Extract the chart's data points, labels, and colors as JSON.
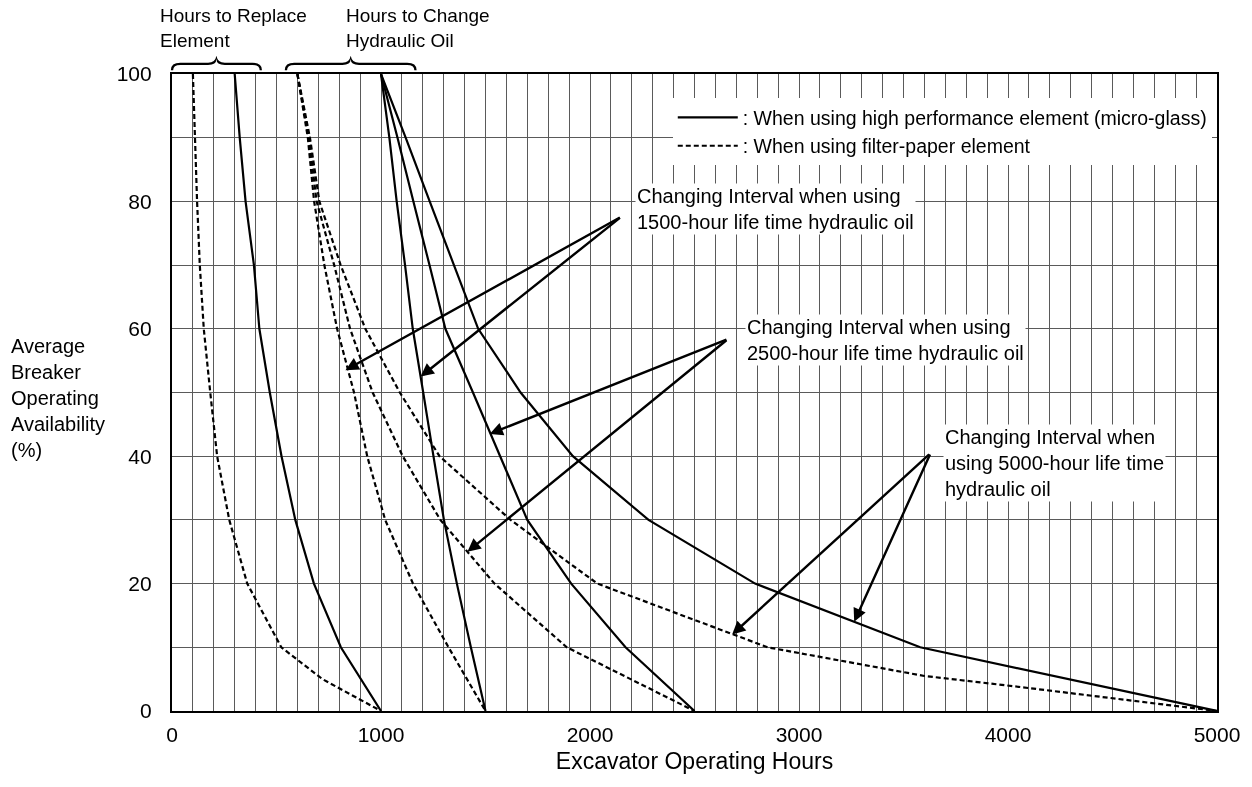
{
  "chart_data": {
    "type": "line",
    "xlabel": "Excavator Operating Hours",
    "ylabel": "Average\nBreaker\nOperating\nAvailability\n(%)",
    "annotations": [
      "Hours to Replace\nElement",
      "Hours to Change\nHydraulic Oil",
      {
        "text": "Changing Interval when using\n1500-hour life time hydraulic oil",
        "x": 830,
        "y": 53.5
      },
      {
        "text": "Changing Interval when using\n2500-hour life time hydraulic oil",
        "x": 1520,
        "y": 43.5
      },
      {
        "text": "Changing Interval when\nusing 5000-hour life time\nhydraulic oil",
        "x": 2680,
        "y": 12
      }
    ],
    "xlim": [
      0,
      5000
    ],
    "ylim": [
      0,
      100
    ],
    "xticks": [
      0,
      {
        "value": 100,
        "label": null
      },
      {
        "value": 200,
        "label": null
      },
      {
        "value": 300,
        "label": null
      },
      {
        "value": 400,
        "label": null
      },
      {
        "value": 500,
        "label": null
      },
      {
        "value": 600,
        "label": null
      },
      {
        "value": 700,
        "label": null
      },
      {
        "value": 800,
        "label": null
      },
      {
        "value": 900,
        "label": null
      },
      1000,
      {
        "value": 1100,
        "label": null
      },
      {
        "value": 1200,
        "label": null
      },
      {
        "value": 1300,
        "label": null
      },
      {
        "value": 1400,
        "label": null
      },
      {
        "value": 1500,
        "label": null
      },
      {
        "value": 1600,
        "label": null
      },
      {
        "value": 1700,
        "label": null
      },
      {
        "value": 1800,
        "label": null
      },
      {
        "value": 1900,
        "label": null
      },
      2000,
      {
        "value": 2100,
        "label": null
      },
      {
        "value": 2200,
        "label": null
      },
      {
        "value": 2300,
        "label": null
      },
      {
        "value": 2400,
        "label": null
      },
      {
        "value": 2500,
        "label": null
      },
      {
        "value": 2600,
        "label": null
      },
      {
        "value": 2700,
        "label": null
      },
      {
        "value": 2800,
        "label": null
      },
      {
        "value": 2900,
        "label": null
      },
      3000,
      {
        "value": 3100,
        "label": null
      },
      {
        "value": 3200,
        "label": null
      },
      {
        "value": 3300,
        "label": null
      },
      {
        "value": 3400,
        "label": null
      },
      {
        "value": 3500,
        "label": null
      },
      {
        "value": 3600,
        "label": null
      },
      {
        "value": 3700,
        "label": null
      },
      {
        "value": 3800,
        "label": null
      },
      {
        "value": 3900,
        "label": null
      },
      4000,
      {
        "value": 4100,
        "label": null
      },
      {
        "value": 4200,
        "label": null
      },
      {
        "value": 4300,
        "label": null
      },
      {
        "value": 4400,
        "label": null
      },
      {
        "value": 4500,
        "label": null
      },
      {
        "value": 4600,
        "label": null
      },
      {
        "value": 4700,
        "label": null
      },
      {
        "value": 4800,
        "label": null
      },
      {
        "value": 4900,
        "label": null
      },
      5000
    ],
    "yticks": [
      0,
      {
        "value": 10,
        "label": null
      },
      20,
      {
        "value": 30,
        "label": null
      },
      40,
      {
        "value": 50,
        "label": null
      },
      60,
      {
        "value": 70,
        "label": null
      },
      80,
      {
        "value": 90,
        "label": null
      },
      100
    ],
    "grid": true,
    "legend": "top right",
    "series": [
      {
        "name": ": When using high performance element (micro-glass)",
        "color": "#000000",
        "line_style": "solid",
        "x": [
          300,
          324,
          352,
          392,
          418,
          468,
          524,
          590,
          679,
          808,
          1000
        ],
        "values": [
          100,
          90,
          80,
          70,
          60,
          50,
          40,
          30,
          20,
          10,
          0
        ]
      },
      {
        "name": ": When using filter-paper element",
        "color": "#000000",
        "line_style": "dashed",
        "x": [
          100,
          110,
          120,
          133,
          152,
          183,
          216,
          274,
          360,
          523,
          720,
          1000
        ],
        "values": [
          100,
          90,
          80,
          70,
          60,
          50,
          40,
          30,
          20,
          10,
          5,
          0
        ]
      },
      {
        "color": "#000000",
        "line_style": "solid",
        "x": [
          1000,
          1040,
          1075,
          1115,
          1152,
          1202,
          1251,
          1301,
          1363,
          1430,
          1500
        ],
        "values": [
          100,
          90,
          80,
          70,
          60,
          50,
          40,
          30,
          20,
          10,
          0
        ]
      },
      {
        "color": "#000000",
        "line_style": "dashed",
        "x": [
          600,
          650,
          680,
          729,
          790,
          871,
          934,
          1020,
          1153,
          1323,
          1500
        ],
        "values": [
          100,
          90,
          80,
          70,
          60,
          50,
          40,
          30,
          20,
          10,
          0
        ]
      },
      {
        "color": "#000000",
        "line_style": "solid",
        "x": [
          1000,
          1079,
          1155,
          1232,
          1308,
          1440,
          1570,
          1700,
          1910,
          2170,
          2500
        ],
        "values": [
          100,
          90,
          80,
          70,
          60,
          50,
          40,
          30,
          20,
          10,
          0
        ]
      },
      {
        "color": "#000000",
        "line_style": "dashed",
        "x": [
          600,
          655,
          692,
          776,
          852,
          960,
          1104,
          1284,
          1543,
          1889,
          2500
        ],
        "values": [
          100,
          90,
          80,
          70,
          60,
          50,
          40,
          30,
          20,
          10,
          0
        ]
      },
      {
        "color": "#000000",
        "line_style": "solid",
        "x": [
          1000,
          1118,
          1233,
          1349,
          1465,
          1668,
          1918,
          2280,
          2790,
          3580,
          5000
        ],
        "values": [
          100,
          90,
          80,
          70,
          60,
          50,
          40,
          30,
          20,
          10,
          0
        ]
      },
      {
        "color": "#000000",
        "line_style": "dashed",
        "x": [
          600,
          660,
          705,
          807,
          925,
          1090,
          1280,
          1620,
          2035,
          2850,
          3600,
          4050,
          5000
        ],
        "values": [
          100,
          90,
          80,
          70,
          60,
          50,
          40,
          30,
          20,
          10,
          5.5,
          3.8,
          0
        ]
      }
    ]
  }
}
